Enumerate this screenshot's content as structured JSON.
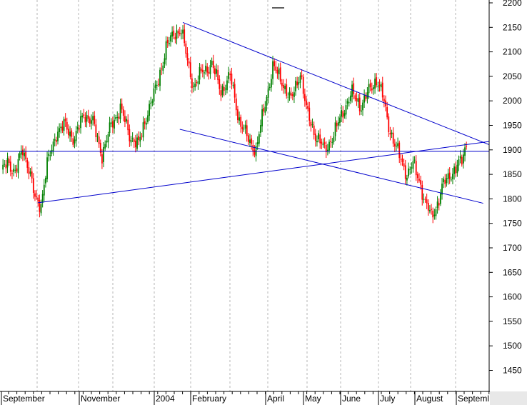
{
  "chart_data": {
    "type": "candlestick",
    "title": "",
    "xlabel": "",
    "ylabel": "",
    "ylim": [
      1400,
      2200
    ],
    "y_ticks": [
      1450,
      1500,
      1550,
      1600,
      1650,
      1700,
      1750,
      1800,
      1850,
      1900,
      1950,
      2000,
      2050,
      2100,
      2150,
      2200
    ],
    "x_labels": [
      "September",
      "November",
      "2004",
      "February",
      "April",
      "May",
      "June",
      "July",
      "August",
      "Septeml"
    ],
    "grid": "vertical dashed",
    "colors": {
      "up_candle": "#008000",
      "down_candle": "#ff0000",
      "trendline": "#0000cc",
      "grid": "#b4b4b4",
      "axis_panel": "#ffffff"
    },
    "price_anchors": [
      {
        "t": 0,
        "v": 1850
      },
      {
        "t": 4,
        "v": 1880
      },
      {
        "t": 9,
        "v": 1850
      },
      {
        "t": 14,
        "v": 1905
      },
      {
        "t": 18,
        "v": 1860
      },
      {
        "t": 22,
        "v": 1800
      },
      {
        "t": 26,
        "v": 1790
      },
      {
        "t": 30,
        "v": 1870
      },
      {
        "t": 36,
        "v": 1935
      },
      {
        "t": 42,
        "v": 1950
      },
      {
        "t": 48,
        "v": 1920
      },
      {
        "t": 54,
        "v": 1975
      },
      {
        "t": 60,
        "v": 1955
      },
      {
        "t": 66,
        "v": 1890
      },
      {
        "t": 72,
        "v": 1950
      },
      {
        "t": 78,
        "v": 1985
      },
      {
        "t": 84,
        "v": 1930
      },
      {
        "t": 90,
        "v": 1910
      },
      {
        "t": 96,
        "v": 1980
      },
      {
        "t": 102,
        "v": 2030
      },
      {
        "t": 108,
        "v": 2110
      },
      {
        "t": 114,
        "v": 2140
      },
      {
        "t": 118,
        "v": 2145
      },
      {
        "t": 122,
        "v": 2080
      },
      {
        "t": 126,
        "v": 2030
      },
      {
        "t": 132,
        "v": 2060
      },
      {
        "t": 138,
        "v": 2075
      },
      {
        "t": 144,
        "v": 2020
      },
      {
        "t": 150,
        "v": 2050
      },
      {
        "t": 156,
        "v": 1960
      },
      {
        "t": 162,
        "v": 1920
      },
      {
        "t": 167,
        "v": 1900
      },
      {
        "t": 172,
        "v": 1980
      },
      {
        "t": 178,
        "v": 2070
      },
      {
        "t": 184,
        "v": 2040
      },
      {
        "t": 190,
        "v": 2000
      },
      {
        "t": 196,
        "v": 2060
      },
      {
        "t": 200,
        "v": 1980
      },
      {
        "t": 206,
        "v": 1930
      },
      {
        "t": 212,
        "v": 1900
      },
      {
        "t": 218,
        "v": 1930
      },
      {
        "t": 224,
        "v": 1980
      },
      {
        "t": 230,
        "v": 2015
      },
      {
        "t": 236,
        "v": 1990
      },
      {
        "t": 242,
        "v": 2025
      },
      {
        "t": 246,
        "v": 2045
      },
      {
        "t": 250,
        "v": 2010
      },
      {
        "t": 254,
        "v": 1950
      },
      {
        "t": 258,
        "v": 1910
      },
      {
        "t": 262,
        "v": 1880
      },
      {
        "t": 266,
        "v": 1850
      },
      {
        "t": 270,
        "v": 1870
      },
      {
        "t": 274,
        "v": 1840
      },
      {
        "t": 278,
        "v": 1790
      },
      {
        "t": 282,
        "v": 1765
      },
      {
        "t": 286,
        "v": 1790
      },
      {
        "t": 290,
        "v": 1830
      },
      {
        "t": 294,
        "v": 1850
      },
      {
        "t": 298,
        "v": 1860
      },
      {
        "t": 302,
        "v": 1880
      },
      {
        "t": 305,
        "v": 1915
      }
    ],
    "trendlines": [
      {
        "t1": 119,
        "v1": 2160,
        "t2": 322,
        "v2": 1908
      },
      {
        "t1": 24,
        "v1": 1792,
        "t2": 322,
        "v2": 1918
      },
      {
        "t1": 117,
        "v1": 1942,
        "t2": 316,
        "v2": 1791
      },
      {
        "t1": -5,
        "v1": 1897,
        "t2": 322,
        "v2": 1897
      }
    ]
  }
}
